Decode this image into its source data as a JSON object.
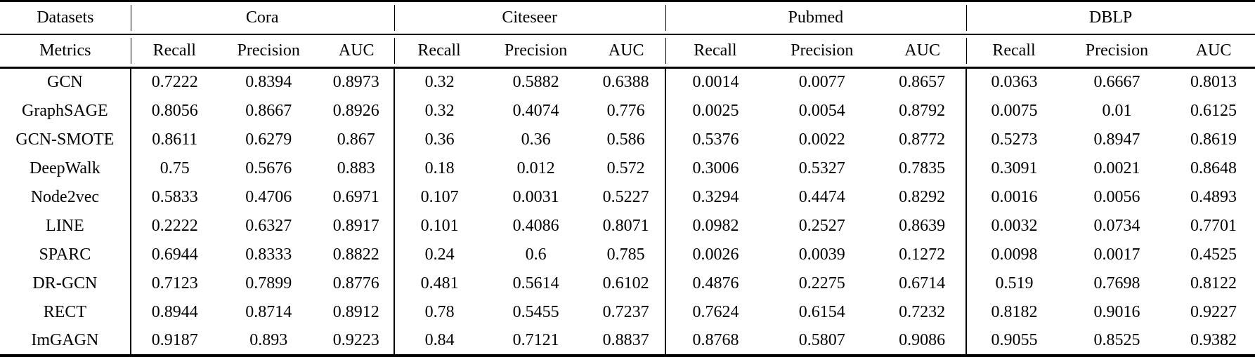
{
  "page": {
    "background_color": "#ffffff",
    "text_color": "#000000"
  },
  "table": {
    "corner": {
      "datasets_label": "Datasets",
      "metrics_label": "Metrics"
    },
    "groups": [
      "Cora",
      "Citeseer",
      "Pubmed",
      "DBLP"
    ],
    "metric_headers": [
      "Recall",
      "Precision",
      "AUC"
    ],
    "rows": [
      {
        "method": "GCN",
        "bold_method": false,
        "cells": [
          {
            "v": "0.7222",
            "b": false
          },
          {
            "v": "0.8394",
            "b": false
          },
          {
            "v": "0.8973",
            "b": false
          },
          {
            "v": "0.32",
            "b": false
          },
          {
            "v": "0.5882",
            "b": false
          },
          {
            "v": "0.6388",
            "b": false
          },
          {
            "v": "0.0014",
            "b": false
          },
          {
            "v": "0.0077",
            "b": false
          },
          {
            "v": "0.8657",
            "b": false
          },
          {
            "v": "0.0363",
            "b": false
          },
          {
            "v": "0.6667",
            "b": false
          },
          {
            "v": "0.8013",
            "b": false
          }
        ]
      },
      {
        "method": "GraphSAGE",
        "bold_method": false,
        "cells": [
          {
            "v": "0.8056",
            "b": false
          },
          {
            "v": "0.8667",
            "b": false
          },
          {
            "v": "0.8926",
            "b": false
          },
          {
            "v": "0.32",
            "b": false
          },
          {
            "v": "0.4074",
            "b": false
          },
          {
            "v": "0.776",
            "b": false
          },
          {
            "v": "0.0025",
            "b": false
          },
          {
            "v": "0.0054",
            "b": false
          },
          {
            "v": "0.8792",
            "b": false
          },
          {
            "v": "0.0075",
            "b": false
          },
          {
            "v": "0.01",
            "b": false
          },
          {
            "v": "0.6125",
            "b": false
          }
        ]
      },
      {
        "method": "GCN-SMOTE",
        "bold_method": false,
        "cells": [
          {
            "v": "0.8611",
            "b": false
          },
          {
            "v": "0.6279",
            "b": false
          },
          {
            "v": "0.867",
            "b": false
          },
          {
            "v": "0.36",
            "b": false
          },
          {
            "v": "0.36",
            "b": false
          },
          {
            "v": "0.586",
            "b": false
          },
          {
            "v": "0.5376",
            "b": false
          },
          {
            "v": "0.0022",
            "b": false
          },
          {
            "v": "0.8772",
            "b": false
          },
          {
            "v": "0.5273",
            "b": false
          },
          {
            "v": "0.8947",
            "b": false
          },
          {
            "v": "0.8619",
            "b": false
          }
        ]
      },
      {
        "method": "DeepWalk",
        "bold_method": false,
        "cells": [
          {
            "v": "0.75",
            "b": false
          },
          {
            "v": "0.5676",
            "b": false
          },
          {
            "v": "0.883",
            "b": false
          },
          {
            "v": "0.18",
            "b": false
          },
          {
            "v": "0.012",
            "b": false
          },
          {
            "v": "0.572",
            "b": false
          },
          {
            "v": "0.3006",
            "b": false
          },
          {
            "v": "0.5327",
            "b": false
          },
          {
            "v": "0.7835",
            "b": false
          },
          {
            "v": "0.3091",
            "b": false
          },
          {
            "v": "0.0021",
            "b": false
          },
          {
            "v": "0.8648",
            "b": false
          }
        ]
      },
      {
        "method": "Node2vec",
        "bold_method": false,
        "cells": [
          {
            "v": "0.5833",
            "b": false
          },
          {
            "v": "0.4706",
            "b": false
          },
          {
            "v": "0.6971",
            "b": false
          },
          {
            "v": "0.107",
            "b": false
          },
          {
            "v": "0.0031",
            "b": false
          },
          {
            "v": "0.5227",
            "b": false
          },
          {
            "v": "0.3294",
            "b": false
          },
          {
            "v": "0.4474",
            "b": false
          },
          {
            "v": "0.8292",
            "b": false
          },
          {
            "v": "0.0016",
            "b": false
          },
          {
            "v": "0.0056",
            "b": false
          },
          {
            "v": "0.4893",
            "b": false
          }
        ]
      },
      {
        "method": "LINE",
        "bold_method": false,
        "cells": [
          {
            "v": "0.2222",
            "b": false
          },
          {
            "v": "0.6327",
            "b": false
          },
          {
            "v": "0.8917",
            "b": false
          },
          {
            "v": "0.101",
            "b": false
          },
          {
            "v": "0.4086",
            "b": false
          },
          {
            "v": "0.8071",
            "b": false
          },
          {
            "v": "0.0982",
            "b": false
          },
          {
            "v": "0.2527",
            "b": false
          },
          {
            "v": "0.8639",
            "b": false
          },
          {
            "v": "0.0032",
            "b": false
          },
          {
            "v": "0.0734",
            "b": false
          },
          {
            "v": "0.7701",
            "b": false
          }
        ]
      },
      {
        "method": "SPARC",
        "bold_method": false,
        "cells": [
          {
            "v": "0.6944",
            "b": false
          },
          {
            "v": "0.8333",
            "b": false
          },
          {
            "v": "0.8822",
            "b": false
          },
          {
            "v": "0.24",
            "b": false
          },
          {
            "v": "0.6",
            "b": false
          },
          {
            "v": "0.785",
            "b": false
          },
          {
            "v": "0.0026",
            "b": false
          },
          {
            "v": "0.0039",
            "b": false
          },
          {
            "v": "0.1272",
            "b": false
          },
          {
            "v": "0.0098",
            "b": false
          },
          {
            "v": "0.0017",
            "b": false
          },
          {
            "v": "0.4525",
            "b": false
          }
        ]
      },
      {
        "method": "DR-GCN",
        "bold_method": false,
        "cells": [
          {
            "v": "0.7123",
            "b": false
          },
          {
            "v": "0.7899",
            "b": false
          },
          {
            "v": "0.8776",
            "b": false
          },
          {
            "v": "0.481",
            "b": false
          },
          {
            "v": "0.5614",
            "b": false
          },
          {
            "v": "0.6102",
            "b": false
          },
          {
            "v": "0.4876",
            "b": false
          },
          {
            "v": "0.2275",
            "b": false
          },
          {
            "v": "0.6714",
            "b": false
          },
          {
            "v": "0.519",
            "b": false
          },
          {
            "v": "0.7698",
            "b": false
          },
          {
            "v": "0.8122",
            "b": false
          }
        ]
      },
      {
        "method": "RECT",
        "bold_method": false,
        "cells": [
          {
            "v": "0.8944",
            "b": false
          },
          {
            "v": "0.8714",
            "b": false
          },
          {
            "v": "0.8912",
            "b": false
          },
          {
            "v": "0.78",
            "b": false
          },
          {
            "v": "0.5455",
            "b": false
          },
          {
            "v": "0.7237",
            "b": false
          },
          {
            "v": "0.7624",
            "b": false
          },
          {
            "v": "0.6154",
            "b": true
          },
          {
            "v": "0.7232",
            "b": false
          },
          {
            "v": "0.8182",
            "b": false
          },
          {
            "v": "0.9016",
            "b": true
          },
          {
            "v": "0.9227",
            "b": false
          }
        ]
      },
      {
        "method": "ImGAGN",
        "bold_method": true,
        "cells": [
          {
            "v": "0.9187",
            "b": true
          },
          {
            "v": "0.893",
            "b": true
          },
          {
            "v": "0.9223",
            "b": true
          },
          {
            "v": "0.84",
            "b": true
          },
          {
            "v": "0.7121",
            "b": true
          },
          {
            "v": "0.8837",
            "b": true
          },
          {
            "v": "0.8768",
            "b": true
          },
          {
            "v": "0.5807",
            "b": false
          },
          {
            "v": "0.9086",
            "b": true
          },
          {
            "v": "0.9055",
            "b": true
          },
          {
            "v": "0.8525",
            "b": false
          },
          {
            "v": "0.9382",
            "b": true
          }
        ]
      }
    ]
  }
}
